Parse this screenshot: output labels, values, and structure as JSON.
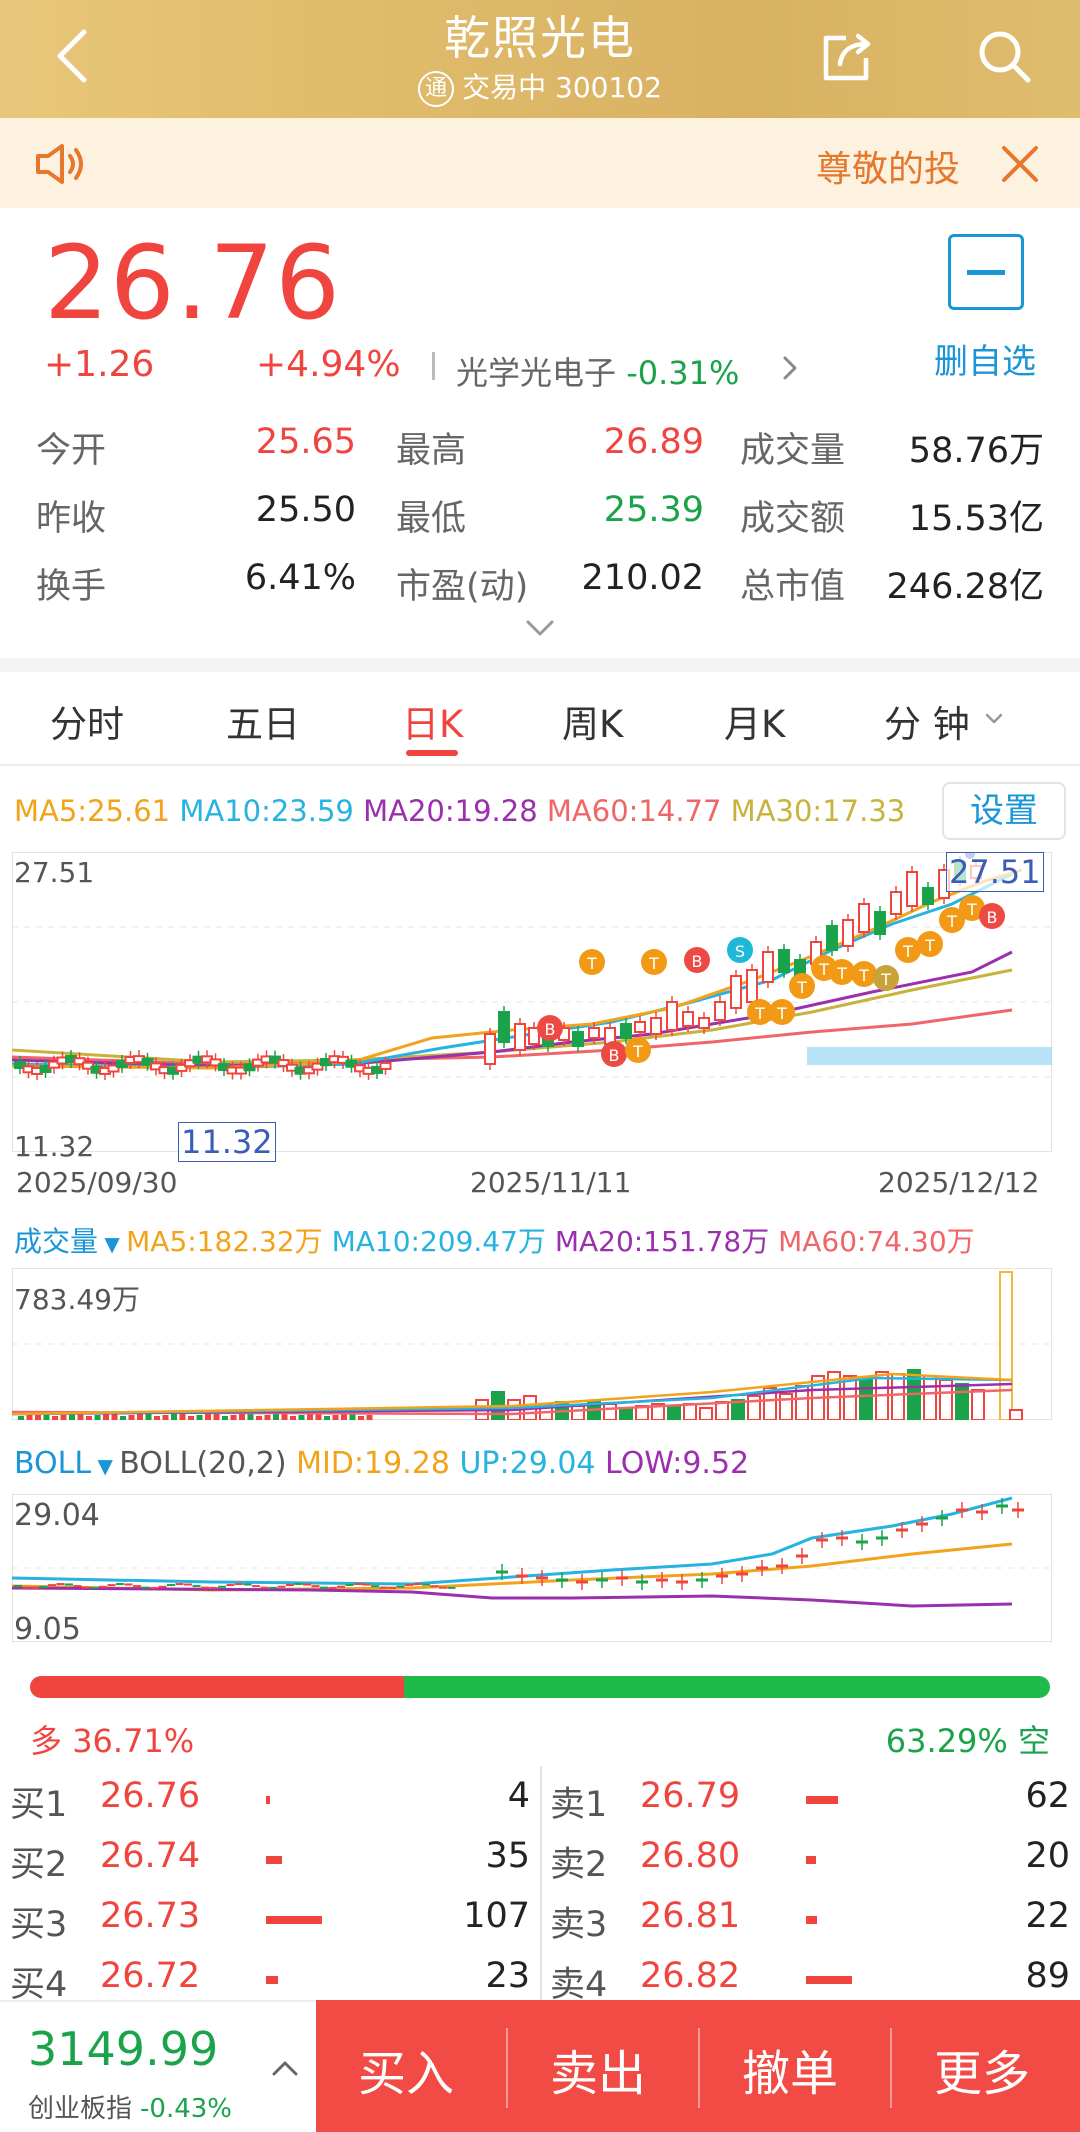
{
  "header": {
    "title": "乾照光电",
    "badge": "通",
    "status": "交易中",
    "code": "300102"
  },
  "notice": {
    "text": "尊敬的投"
  },
  "quote": {
    "price": "26.76",
    "change": "+1.26",
    "change_pct": "+4.94%",
    "sector_name": "光学光电子",
    "sector_pct": "-0.31%",
    "fav_label": "删自选"
  },
  "stats": [
    {
      "label": "今开",
      "value": "25.65",
      "color": "#f0453e"
    },
    {
      "label": "最高",
      "value": "26.89",
      "color": "#f0453e"
    },
    {
      "label": "成交量",
      "value": "58.76万",
      "color": "#222222"
    },
    {
      "label": "昨收",
      "value": "25.50",
      "color": "#222222"
    },
    {
      "label": "最低",
      "value": "25.39",
      "color": "#1aa34a"
    },
    {
      "label": "成交额",
      "value": "15.53亿",
      "color": "#222222"
    },
    {
      "label": "换手",
      "value": "6.41%",
      "color": "#222222"
    },
    {
      "label": "市盈(动)",
      "value": "210.02",
      "color": "#222222"
    },
    {
      "label": "总市值",
      "value": "246.28亿",
      "color": "#222222"
    }
  ],
  "tabs": [
    "分时",
    "五日",
    "日K",
    "周K",
    "月K",
    "分 钟"
  ],
  "active_tab": "日K",
  "ma": {
    "ma5": "MA5:25.61",
    "ma10": "MA10:23.59",
    "ma20": "MA20:19.28",
    "ma60": "MA60:14.77",
    "ma30": "MA30:17.33",
    "settings_label": "设置"
  },
  "kline": {
    "high_label": "27.51",
    "low_label": "11.32",
    "high_tag": "27.51",
    "low_tag": "11.32",
    "dates": [
      "2025/09/30",
      "2025/11/11",
      "2025/12/12"
    ]
  },
  "volume": {
    "title": "成交量",
    "ma5": "MA5:182.32万",
    "ma10": "MA10:209.47万",
    "ma20": "MA20:151.78万",
    "ma60": "MA60:74.30万",
    "max_label": "783.49万"
  },
  "boll": {
    "title": "BOLL",
    "params": "BOLL(20,2)",
    "mid": "MID:19.28",
    "up": "UP:29.04",
    "low": "LOW:9.52",
    "top_label": "29.04",
    "bottom_label": "9.05"
  },
  "long_short": {
    "long_label": "多",
    "long_pct": "36.71%",
    "short_label": "空",
    "short_pct": "63.29%",
    "long_fraction": 0.3671
  },
  "orderbook": {
    "bids": [
      {
        "label": "买1",
        "price": "26.76",
        "qty": "4",
        "bar": 4
      },
      {
        "label": "买2",
        "price": "26.74",
        "qty": "35",
        "bar": 16
      },
      {
        "label": "买3",
        "price": "26.73",
        "qty": "107",
        "bar": 56
      },
      {
        "label": "买4",
        "price": "26.72",
        "qty": "23",
        "bar": 12
      }
    ],
    "asks": [
      {
        "label": "卖1",
        "price": "26.79",
        "qty": "62",
        "bar": 32
      },
      {
        "label": "卖2",
        "price": "26.80",
        "qty": "20",
        "bar": 10
      },
      {
        "label": "卖3",
        "price": "26.81",
        "qty": "22",
        "bar": 11
      },
      {
        "label": "卖4",
        "price": "26.82",
        "qty": "89",
        "bar": 46
      }
    ]
  },
  "bottom": {
    "index_value": "3149.99",
    "index_name": "创业板指",
    "index_pct": "-0.43%",
    "buttons": [
      "买入",
      "卖出",
      "撤单",
      "更多"
    ]
  },
  "colors": {
    "up": "#f0453e",
    "down": "#1aa34a",
    "ma5": "#f2a31b",
    "ma10": "#27b3df",
    "ma20": "#9b2fae",
    "ma60": "#f06567",
    "ma30": "#c9b23c",
    "header": "#e0bc6c",
    "accent": "#1a95d6"
  }
}
